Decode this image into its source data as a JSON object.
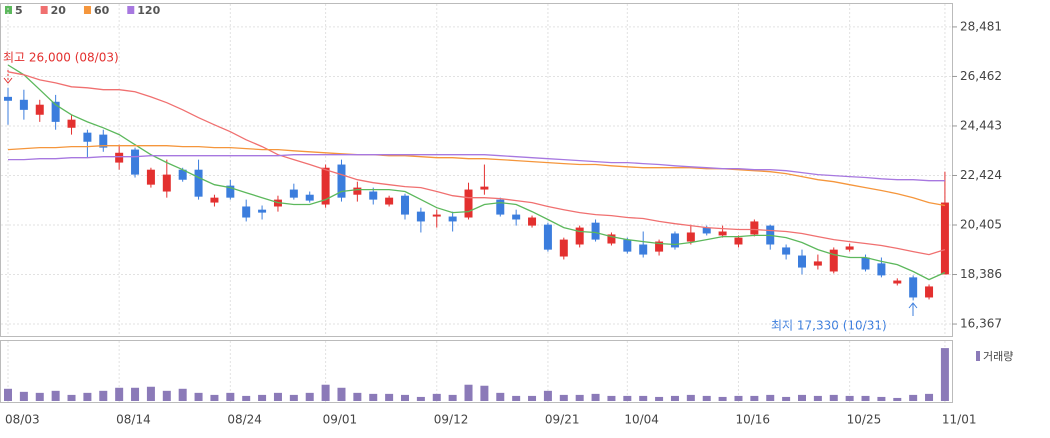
{
  "chart_data": {
    "type": "candlestick",
    "categories": [
      "08/03",
      null,
      null,
      null,
      null,
      null,
      null,
      "08/14",
      null,
      null,
      null,
      null,
      null,
      null,
      "08/24",
      null,
      null,
      null,
      null,
      null,
      "09/01",
      null,
      null,
      null,
      null,
      null,
      null,
      "09/12",
      null,
      null,
      null,
      null,
      null,
      null,
      "09/21",
      null,
      null,
      null,
      null,
      "10/04",
      null,
      null,
      null,
      null,
      null,
      null,
      "10/16",
      null,
      null,
      null,
      null,
      null,
      null,
      "10/25",
      null,
      null,
      null,
      null,
      null,
      "11/01"
    ],
    "open": [
      25630,
      25510,
      24900,
      25430,
      24370,
      24170,
      24090,
      22950,
      23480,
      22050,
      21770,
      22660,
      22660,
      21320,
      22010,
      21160,
      21030,
      21160,
      21850,
      21640,
      21240,
      22870,
      21640,
      21770,
      21240,
      21600,
      20950,
      20750,
      20750,
      20710,
      21850,
      21440,
      20830,
      20380,
      20420,
      19120,
      19610,
      20500,
      19650,
      19810,
      19610,
      19320,
      20060,
      19730,
      20300,
      19980,
      19610,
      20020,
      20380,
      19490,
      19160,
      18750,
      18510,
      19400,
      19080,
      18840,
      18020,
      18270,
      17450,
      18390
    ],
    "high": [
      26000,
      25920,
      25510,
      25710,
      24900,
      24290,
      24290,
      23680,
      23560,
      22740,
      23070,
      22740,
      23070,
      21640,
      22250,
      21440,
      21200,
      21600,
      22090,
      21770,
      22870,
      23070,
      22170,
      21930,
      21600,
      21680,
      21110,
      21030,
      20950,
      22130,
      22870,
      21520,
      21030,
      20790,
      20500,
      19890,
      20380,
      20630,
      20100,
      19890,
      20140,
      19810,
      20140,
      20420,
      20380,
      20380,
      19980,
      20630,
      20420,
      19610,
      19400,
      19200,
      19490,
      19650,
      19200,
      19080,
      18230,
      18350,
      17980,
      22580
    ],
    "low": [
      24490,
      24700,
      24610,
      24290,
      24090,
      23150,
      23390,
      22660,
      22340,
      21930,
      21520,
      22170,
      21440,
      21160,
      21440,
      20550,
      20630,
      20950,
      21440,
      21320,
      21110,
      21360,
      21360,
      21240,
      21160,
      20630,
      20100,
      20300,
      20140,
      20630,
      21640,
      20750,
      20380,
      20300,
      19320,
      19000,
      19490,
      19730,
      19570,
      19240,
      19080,
      19160,
      19400,
      19610,
      19980,
      19890,
      19490,
      19940,
      19400,
      19000,
      18390,
      18590,
      18430,
      19320,
      18510,
      18270,
      17940,
      17330,
      17370,
      18390
    ],
    "close": [
      25470,
      25100,
      25310,
      24610,
      24700,
      23800,
      23560,
      23350,
      22460,
      22660,
      22460,
      22250,
      21560,
      21520,
      21520,
      20710,
      20910,
      21440,
      21520,
      21400,
      22740,
      21520,
      21930,
      21440,
      21520,
      20830,
      20550,
      20830,
      20550,
      21850,
      21970,
      20830,
      20630,
      20710,
      19400,
      19810,
      20300,
      19810,
      20020,
      19320,
      19200,
      19730,
      19490,
      20100,
      20060,
      20140,
      19890,
      20550,
      19610,
      19200,
      18670,
      18920,
      19400,
      19530,
      18590,
      18350,
      18140,
      17450,
      17900,
      21320
    ],
    "up_color": "#e3302f",
    "down_color": "#3b7ddd",
    "series": [
      {
        "name": "5",
        "color": "#5cb85c",
        "values": [
          26930,
          26530,
          25920,
          25310,
          24900,
          24610,
          24370,
          24090,
          23680,
          23270,
          22950,
          22660,
          22340,
          22050,
          21930,
          21720,
          21520,
          21320,
          21240,
          21240,
          21440,
          21770,
          21850,
          21850,
          21850,
          21770,
          21440,
          21110,
          20910,
          20950,
          21240,
          21320,
          21240,
          20950,
          20630,
          20300,
          20140,
          20100,
          19930,
          19810,
          19730,
          19650,
          19610,
          19690,
          19810,
          19930,
          19930,
          19980,
          19980,
          19890,
          19690,
          19400,
          19200,
          19080,
          19080,
          18920,
          18790,
          18510,
          18180,
          18470
        ]
      },
      {
        "name": "20",
        "color": "#f07070",
        "values": [
          26650,
          26530,
          26320,
          26200,
          26040,
          26000,
          25920,
          25920,
          25840,
          25630,
          25390,
          25100,
          24780,
          24490,
          24210,
          23880,
          23600,
          23270,
          23070,
          22870,
          22660,
          22460,
          22250,
          22130,
          22050,
          21970,
          21930,
          21770,
          21600,
          21520,
          21520,
          21480,
          21400,
          21320,
          21160,
          21030,
          20910,
          20830,
          20790,
          20710,
          20670,
          20550,
          20460,
          20380,
          20300,
          20260,
          20220,
          20220,
          20180,
          20140,
          20060,
          19930,
          19810,
          19730,
          19650,
          19570,
          19450,
          19320,
          19200,
          19400
        ]
      },
      {
        "name": "60",
        "color": "#f5963c",
        "values": [
          23480,
          23520,
          23560,
          23560,
          23600,
          23600,
          23640,
          23640,
          23640,
          23640,
          23640,
          23600,
          23600,
          23560,
          23560,
          23520,
          23480,
          23480,
          23430,
          23390,
          23350,
          23310,
          23270,
          23270,
          23230,
          23230,
          23190,
          23150,
          23150,
          23110,
          23110,
          23070,
          23030,
          22990,
          22950,
          22910,
          22870,
          22870,
          22820,
          22780,
          22740,
          22740,
          22740,
          22740,
          22700,
          22700,
          22660,
          22620,
          22580,
          22500,
          22380,
          22250,
          22170,
          22050,
          21930,
          21810,
          21680,
          21520,
          21320,
          21200
        ]
      },
      {
        "name": "120",
        "color": "#a778e0",
        "values": [
          23070,
          23070,
          23110,
          23110,
          23150,
          23150,
          23190,
          23190,
          23190,
          23230,
          23230,
          23230,
          23230,
          23230,
          23230,
          23230,
          23230,
          23230,
          23270,
          23270,
          23270,
          23270,
          23270,
          23270,
          23270,
          23270,
          23270,
          23270,
          23270,
          23270,
          23270,
          23230,
          23190,
          23150,
          23110,
          23070,
          23030,
          22990,
          22950,
          22950,
          22910,
          22870,
          22820,
          22780,
          22740,
          22700,
          22700,
          22660,
          22660,
          22620,
          22540,
          22460,
          22420,
          22380,
          22340,
          22290,
          22250,
          22250,
          22210,
          22210
        ]
      }
    ],
    "ylim": [
      15920,
      29375
    ],
    "yticks": [
      {
        "value": 28481,
        "label": "28,481"
      },
      {
        "value": 26462,
        "label": "26,462"
      },
      {
        "value": 24443,
        "label": "24,443"
      },
      {
        "value": 22424,
        "label": "22,424"
      },
      {
        "value": 20405,
        "label": "20,405"
      },
      {
        "value": 18386,
        "label": "18,386"
      },
      {
        "value": 16367,
        "label": "16,367"
      }
    ],
    "grid": true,
    "volume": {
      "name": "거래량",
      "color": "#8b7ab8",
      "ylim": [
        0,
        5700000
      ],
      "values": [
        1200000,
        900000,
        800000,
        1000000,
        600000,
        800000,
        1000000,
        1300000,
        1300000,
        1400000,
        1000000,
        1200000,
        800000,
        600000,
        800000,
        500000,
        600000,
        800000,
        600000,
        800000,
        1600000,
        1300000,
        800000,
        700000,
        700000,
        600000,
        400000,
        700000,
        600000,
        1600000,
        1500000,
        800000,
        500000,
        500000,
        1000000,
        600000,
        600000,
        700000,
        500000,
        500000,
        500000,
        400000,
        500000,
        600000,
        500000,
        400000,
        500000,
        500000,
        600000,
        400000,
        600000,
        500000,
        600000,
        500000,
        500000,
        400000,
        300000,
        600000,
        700000,
        5200000
      ]
    },
    "annotations": {
      "high": "최고 26,000 (08/03)",
      "low": "최저 17,330 (10/31)"
    }
  }
}
